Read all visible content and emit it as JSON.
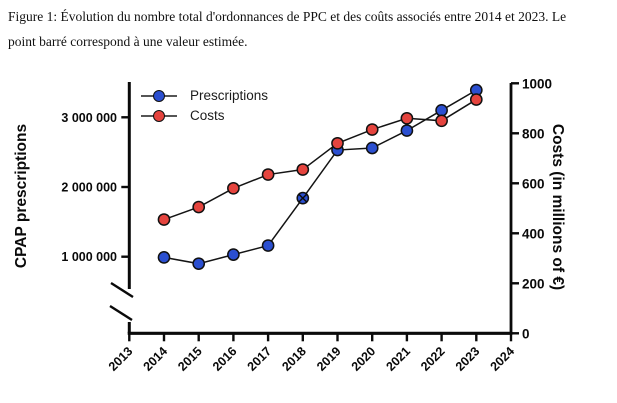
{
  "caption": {
    "lines": [
      "Figure 1: Évolution du nombre total d'ordonnances de PPC et des coûts associés entre 2014 et 2023. Le",
      "point barré correspond à une valeur estimée."
    ]
  },
  "chart_data": {
    "type": "line",
    "x": [
      2014,
      2015,
      2016,
      2017,
      2018,
      2019,
      2020,
      2021,
      2022,
      2023
    ],
    "x_axis": {
      "tick_labels": [
        "2013",
        "2014",
        "2015",
        "2016",
        "2017",
        "2018",
        "2019",
        "2020",
        "2021",
        "2022",
        "2023",
        "2024"
      ],
      "range": [
        2013,
        2024
      ]
    },
    "left_axis": {
      "label": "CPAP prescriptions",
      "ticks": [
        {
          "value": 1000000,
          "label": "1 000 000"
        },
        {
          "value": 2000000,
          "label": "2 000 000"
        },
        {
          "value": 3000000,
          "label": "3 000 000"
        }
      ],
      "axis_break_below": 1000000
    },
    "right_axis": {
      "label": "Costs (in millions of €)",
      "ticks": [
        {
          "value": 0,
          "label": "0"
        },
        {
          "value": 200,
          "label": "200"
        },
        {
          "value": 400,
          "label": "400"
        },
        {
          "value": 600,
          "label": "600"
        },
        {
          "value": 800,
          "label": "800"
        },
        {
          "value": 1000,
          "label": "1000"
        }
      ],
      "lim": [
        0,
        1000
      ]
    },
    "series": [
      {
        "name": "Prescriptions",
        "axis": "left",
        "color": "#2B4FD0",
        "values": [
          990000,
          900000,
          1030000,
          1160000,
          1840000,
          2530000,
          2560000,
          2810000,
          3100000,
          3390000
        ],
        "estimated_points": [
          2018
        ]
      },
      {
        "name": "Costs",
        "axis": "right",
        "color": "#E5443E",
        "values": [
          455,
          505,
          580,
          635,
          655,
          760,
          815,
          860,
          850,
          935
        ],
        "estimated_points": []
      }
    ],
    "legend": {
      "position": "top-left-inside",
      "entries": [
        "Prescriptions",
        "Costs"
      ]
    },
    "grid": false,
    "marker": "circle-black-outline",
    "line_color": "#141414"
  }
}
